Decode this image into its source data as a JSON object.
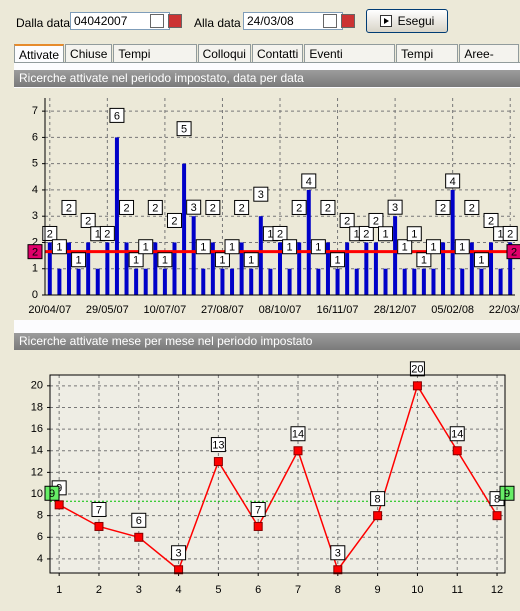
{
  "toolbar": {
    "from_label": "Dalla data",
    "from_value": "04042007",
    "to_label": "Alla data",
    "to_value": "24/03/08",
    "button": "Esegui"
  },
  "tabs": [
    "Attivate",
    "Chiuse",
    "Tempi dedicati",
    "Colloqui",
    "Contatti",
    "Eventi candidati",
    "Tempi vari",
    "Aree-ruoli"
  ],
  "chart_data": [
    {
      "type": "bar",
      "title": "Ricerche attivate nel periodo impostato, data per data",
      "categories": [
        "20/04/07",
        null,
        null,
        null,
        null,
        null,
        "29/05/07",
        null,
        null,
        null,
        null,
        null,
        "10/07/07",
        null,
        null,
        null,
        null,
        null,
        "27/08/07",
        null,
        null,
        null,
        null,
        null,
        "08/10/07",
        null,
        null,
        null,
        null,
        null,
        "16/11/07",
        null,
        null,
        null,
        null,
        null,
        "28/12/07",
        null,
        null,
        null,
        null,
        null,
        "05/02/08",
        null,
        null,
        null,
        null,
        null,
        "22/03/08"
      ],
      "values": [
        2,
        1,
        2,
        1,
        2,
        1,
        2,
        6,
        2,
        1,
        1,
        2,
        1,
        2,
        5,
        3,
        1,
        2,
        1,
        1,
        2,
        1,
        3,
        1,
        2,
        1,
        2,
        4,
        1,
        2,
        1,
        2,
        1,
        2,
        2,
        1,
        3,
        1,
        1,
        1,
        1,
        2,
        4,
        1,
        2,
        1,
        2,
        1,
        2
      ],
      "color": "#0000c8",
      "ylim": [
        0,
        7.5
      ],
      "yticks": [
        0,
        1,
        2,
        3,
        4,
        5,
        6,
        7
      ],
      "grid": true,
      "average": {
        "value": 1.65,
        "label": "2"
      },
      "average_color": "#ff0000",
      "average_label_color": "#e0006a"
    },
    {
      "type": "line",
      "title": "Ricerche attivate mese per mese nel periodo impostato",
      "x": [
        1,
        2,
        3,
        4,
        5,
        6,
        7,
        8,
        9,
        10,
        11,
        12
      ],
      "values": [
        9,
        7,
        6,
        3,
        13,
        7,
        14,
        3,
        8,
        20,
        14,
        8
      ],
      "color": "#ff0000",
      "xlim": [
        0.77,
        12.2
      ],
      "ylim": [
        2.7,
        21
      ],
      "xticks": [
        1,
        2,
        3,
        4,
        5,
        6,
        7,
        8,
        9,
        10,
        11,
        12
      ],
      "yticks": [
        4,
        6,
        8,
        10,
        12,
        14,
        16,
        18,
        20
      ],
      "grid": true,
      "average": {
        "value": 9.33,
        "label": "9"
      },
      "average_color": "#00c000",
      "average_label_color": "#66ee66"
    }
  ]
}
